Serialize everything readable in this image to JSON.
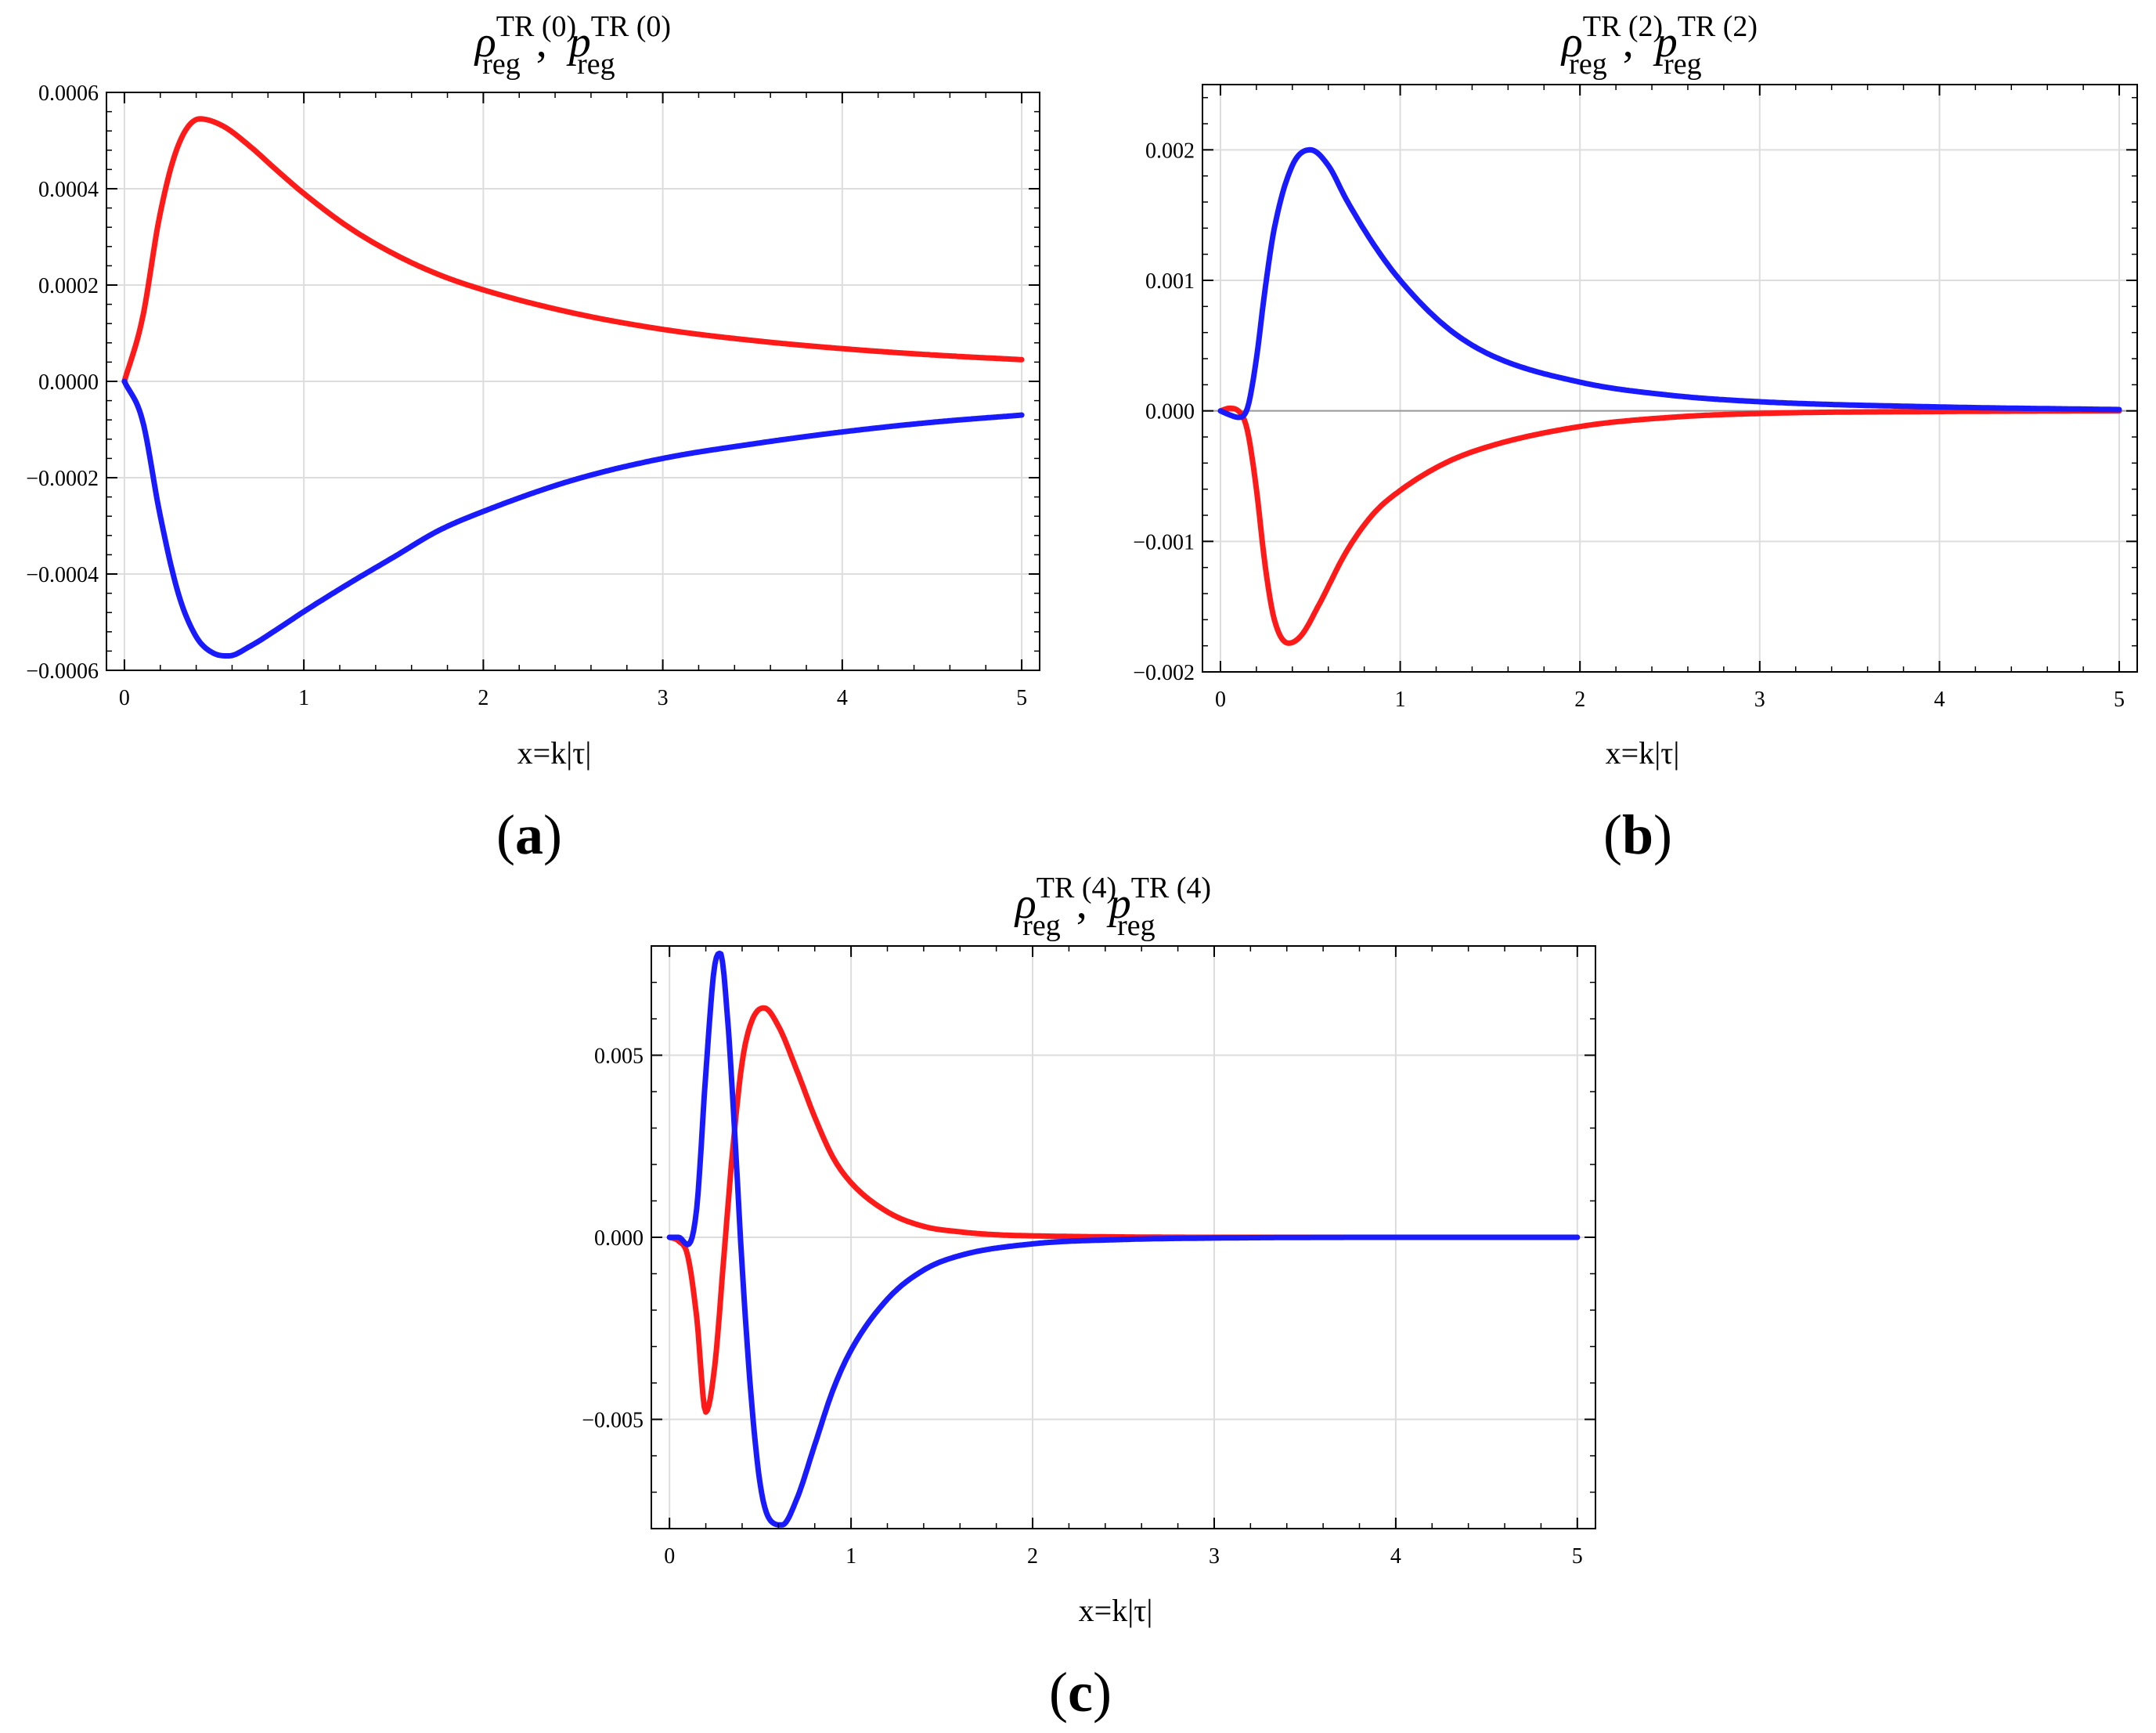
{
  "figure": {
    "colors": {
      "rho": "#ff1a1a",
      "p": "#1a1aff",
      "grid": "#dddddd",
      "frame": "#000000",
      "zero_line": "#9a9a9a"
    }
  },
  "chart_data": [
    {
      "type": "line",
      "panel_label": "(a)",
      "panel_letter": "a",
      "title": {
        "sym1": "ρ",
        "sym2": "p",
        "sup": "TR (0)",
        "sub": "reg",
        "sep": ",",
        "text": "ρ reg TR (0) , p reg TR (0)"
      },
      "xlabel": "x=k|τ|",
      "ylabel": "",
      "xlim": [
        0,
        5
      ],
      "ylim": [
        -0.0006,
        0.0006
      ],
      "xticks": [
        0,
        1,
        2,
        3,
        4,
        5
      ],
      "xtick_labels": [
        "0",
        "1",
        "2",
        "3",
        "4",
        "5"
      ],
      "yticks": [
        -0.0006,
        -0.0004,
        -0.0002,
        0,
        0.0002,
        0.0004,
        0.0006
      ],
      "ytick_labels": [
        "−0.0006",
        "−0.0004",
        "−0.0002",
        "0.0000",
        "0.0002",
        "0.0004",
        "0.0006"
      ],
      "grid": true,
      "zero_line": false,
      "series": [
        {
          "name": "rho_reg^TR(0)",
          "color": "#ff1a1a",
          "x": [
            0,
            0.1,
            0.2,
            0.3,
            0.42,
            0.55,
            0.7,
            0.85,
            1.0,
            1.25,
            1.5,
            1.75,
            2.0,
            2.5,
            3.0,
            3.5,
            4.0,
            4.5,
            5.0
          ],
          "y": [
            0,
            0.00013,
            0.00035,
            0.00049,
            0.000545,
            0.00053,
            0.000488,
            0.000438,
            0.00039,
            0.00032,
            0.000265,
            0.000222,
            0.00019,
            0.000142,
            0.000108,
            8.5e-05,
            6.8e-05,
            5.5e-05,
            4.5e-05
          ]
        },
        {
          "name": "p_reg^TR(0)",
          "color": "#1a1aff",
          "x": [
            0,
            0.1,
            0.2,
            0.3,
            0.4,
            0.5,
            0.58,
            0.7,
            0.85,
            1.0,
            1.25,
            1.5,
            1.75,
            2.0,
            2.5,
            3.0,
            3.5,
            4.0,
            4.5,
            5.0
          ],
          "y": [
            0,
            -8e-05,
            -0.00028,
            -0.00044,
            -0.00053,
            -0.000565,
            -0.00057,
            -0.00055,
            -0.000515,
            -0.000478,
            -0.00042,
            -0.000365,
            -0.00031,
            -0.00027,
            -0.000205,
            -0.00016,
            -0.00013,
            -0.000105,
            -8.5e-05,
            -7e-05
          ]
        }
      ]
    },
    {
      "type": "line",
      "panel_label": "(b)",
      "panel_letter": "b",
      "title": {
        "sym1": "ρ",
        "sym2": "p",
        "sup": "TR (2)",
        "sub": "reg",
        "sep": ",",
        "text": "ρ reg TR (2) , p reg TR (2)"
      },
      "xlabel": "x=k|τ|",
      "ylabel": "",
      "xlim": [
        0,
        5
      ],
      "ylim": [
        -0.002,
        0.0025
      ],
      "xticks": [
        0,
        1,
        2,
        3,
        4,
        5
      ],
      "xtick_labels": [
        "0",
        "1",
        "2",
        "3",
        "4",
        "5"
      ],
      "yticks": [
        -0.002,
        -0.001,
        0,
        0.001,
        0.002
      ],
      "ytick_labels": [
        "−0.002",
        "−0.001",
        "0.000",
        "0.001",
        "0.002"
      ],
      "grid": true,
      "zero_line": true,
      "series": [
        {
          "name": "rho_reg^TR(2)",
          "color": "#ff1a1a",
          "x": [
            0,
            0.05,
            0.1,
            0.15,
            0.2,
            0.25,
            0.3,
            0.38,
            0.45,
            0.55,
            0.7,
            0.85,
            1.0,
            1.25,
            1.5,
            2.0,
            2.5,
            3.0,
            4.0,
            5.0
          ],
          "y": [
            0,
            2e-05,
            0,
            -0.00015,
            -0.0006,
            -0.0012,
            -0.0016,
            -0.00178,
            -0.00172,
            -0.00148,
            -0.00108,
            -0.00079,
            -0.00061,
            -0.0004,
            -0.00027,
            -0.00012,
            -5e-05,
            -2e-05,
            -5e-06,
            0
          ]
        },
        {
          "name": "p_reg^TR(2)",
          "color": "#1a1aff",
          "x": [
            0,
            0.05,
            0.1,
            0.15,
            0.2,
            0.25,
            0.3,
            0.4,
            0.5,
            0.6,
            0.7,
            0.85,
            1.0,
            1.25,
            1.5,
            2.0,
            2.5,
            3.0,
            4.0,
            5.0
          ],
          "y": [
            0,
            -3e-05,
            -5e-05,
            2e-05,
            0.0004,
            0.00095,
            0.0014,
            0.00188,
            0.002,
            0.00188,
            0.00162,
            0.00128,
            0.001,
            0.00065,
            0.00043,
            0.00022,
            0.00012,
            7e-05,
            3e-05,
            1e-05
          ]
        }
      ]
    },
    {
      "type": "line",
      "panel_label": "(c)",
      "panel_letter": "c",
      "title": {
        "sym1": "ρ",
        "sym2": "p",
        "sup": "TR (4)",
        "sub": "reg",
        "sep": ",",
        "text": "ρ reg TR (4) , p reg TR (4)"
      },
      "xlabel": "x=k|τ|",
      "ylabel": "",
      "xlim": [
        0,
        5
      ],
      "ylim": [
        -0.008,
        0.008
      ],
      "xticks": [
        0,
        1,
        2,
        3,
        4,
        5
      ],
      "xtick_labels": [
        "0",
        "1",
        "2",
        "3",
        "4",
        "5"
      ],
      "yticks": [
        -0.005,
        0,
        0.005
      ],
      "ytick_labels": [
        "−0.005",
        "0.000",
        "0.005"
      ],
      "grid": true,
      "zero_line": false,
      "series": [
        {
          "name": "rho_reg^TR(4)",
          "color": "#ff1a1a",
          "x": [
            0,
            0.05,
            0.1,
            0.15,
            0.2,
            0.25,
            0.3,
            0.35,
            0.4,
            0.45,
            0.52,
            0.6,
            0.7,
            0.8,
            0.9,
            1.0,
            1.2,
            1.4,
            1.6,
            1.8,
            2.0,
            2.5,
            3.0,
            4.0,
            5.0
          ],
          "y": [
            0,
            -0.0001,
            -0.0005,
            -0.0022,
            -0.0048,
            -0.0035,
            -0.0005,
            0.0025,
            0.0048,
            0.0059,
            0.0063,
            0.0058,
            0.0046,
            0.0033,
            0.0022,
            0.0015,
            0.0007,
            0.0003,
            0.00015,
            7e-05,
            4e-05,
            1e-05,
            0,
            0,
            0
          ]
        },
        {
          "name": "p_reg^TR(4)",
          "color": "#1a1aff",
          "x": [
            0,
            0.05,
            0.1,
            0.15,
            0.2,
            0.25,
            0.28,
            0.32,
            0.36,
            0.4,
            0.45,
            0.5,
            0.56,
            0.62,
            0.7,
            0.8,
            0.9,
            1.0,
            1.2,
            1.4,
            1.6,
            2.0,
            2.5,
            3.0,
            4.0,
            5.0
          ],
          "y": [
            0,
            0,
            -0.0002,
            0.0008,
            0.0045,
            0.0075,
            0.0078,
            0.006,
            0.0028,
            -0.0008,
            -0.0044,
            -0.0068,
            -0.0078,
            -0.0079,
            -0.0072,
            -0.0057,
            -0.0042,
            -0.0031,
            -0.0017,
            -0.0009,
            -0.0005,
            -0.00018,
            -6e-05,
            -2e-05,
            0,
            0
          ]
        }
      ]
    }
  ]
}
